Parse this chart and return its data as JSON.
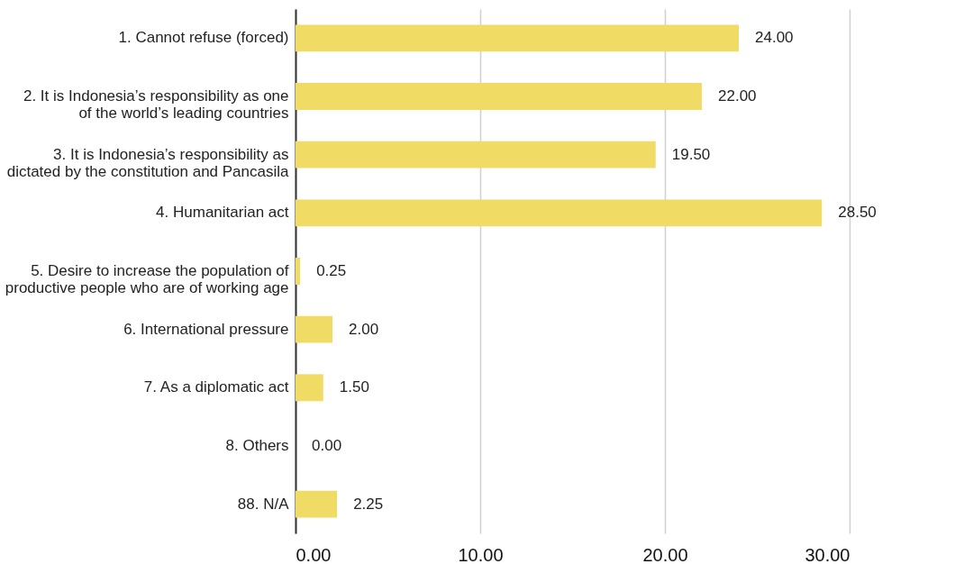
{
  "chart_data": {
    "type": "bar",
    "orientation": "horizontal",
    "categories": [
      "1. Cannot refuse (forced)",
      "2. It is Indonesia’s responsibility as one of the world’s leading countries",
      "3. It is Indonesia’s responsibility as dictated by the constitution and Pancasila",
      "4. Humanitarian act",
      "5. Desire to increase the population of productive people who are of working age",
      "6. International pressure",
      "7. As a diplomatic act",
      "8. Others",
      "88. N/A"
    ],
    "values": [
      24,
      22,
      19.5,
      28.5,
      0.25,
      2,
      1.5,
      0,
      2.25
    ],
    "value_labels": [
      "24.00",
      "22.00",
      "19.50",
      "28.50",
      "0.25",
      "2.00",
      "1.50",
      "0.00",
      "2.25"
    ],
    "color": "#f0dc64",
    "xlim": [
      0,
      30
    ],
    "xticks": [
      {
        "value": 0,
        "label": "0.00"
      },
      {
        "value": 10,
        "label": "10.00"
      },
      {
        "value": 20,
        "label": "20.00"
      },
      {
        "value": 30,
        "label": "30.00"
      }
    ],
    "grid": "x"
  }
}
